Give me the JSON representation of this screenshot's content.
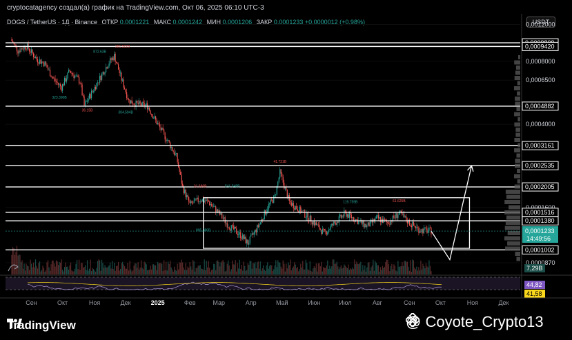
{
  "caption": "cryptocatagency создал(а) график на TradingView.com, Окт 06, 2025 06:10 UTC-3",
  "legend": {
    "symbol": "DOGS / TetherUS · 1Д · Binance",
    "open_label": "ОТКР",
    "open": "0,0001221",
    "high_label": "МАКС",
    "high": "0,0001242",
    "low_label": "МИН",
    "low": "0,0001206",
    "close_label": "ЗАКР",
    "close": "0,0001233",
    "change": "+0,0000012 (+0,98%)"
  },
  "currency_button": "USDT",
  "footer": {
    "brand": "TradingView",
    "author": "@ Coyote_Crypto13"
  },
  "colors": {
    "up": "#26a69a",
    "down": "#ef5350",
    "rsi": "#b39ddb",
    "rsi_ma": "#f9d71c",
    "line": "#ffffff",
    "bg": "#000000"
  },
  "chart_data": {
    "type": "candlestick",
    "price_axis": {
      "scale": "log",
      "ticks": [
        "0,0012000",
        "0,0008000",
        "0,0006500",
        "0,0004000",
        "0,0001600",
        "0,0000870"
      ]
    },
    "x_axis": {
      "ticks": [
        "Сен",
        "Окт",
        "Ноя",
        "Дек",
        "2025",
        "Фев",
        "Мар",
        "Апр",
        "Май",
        "Июн",
        "Июл",
        "Авг",
        "Сен",
        "Окт",
        "Ноя",
        "Дек"
      ]
    },
    "horizontal_levels": [
      {
        "label": "0,0009809",
        "value": 0.0009809
      },
      {
        "label": "0,0009420",
        "value": 0.000942
      },
      {
        "label": "0,0004882",
        "value": 0.0004882
      },
      {
        "label": "0,0003161",
        "value": 0.0003161
      },
      {
        "label": "0,0002535",
        "value": 0.0002535
      },
      {
        "label": "0,0002005",
        "value": 0.0002005
      },
      {
        "label": "0,0001516",
        "value": 0.0001516
      },
      {
        "label": "0,0001380",
        "value": 0.000138
      },
      {
        "label": "0,0001002",
        "value": 0.0001002
      }
    ],
    "current_price": {
      "label": "0,0001233",
      "countdown": "14:49:56",
      "value": 0.0001233
    },
    "price_path": [
      [
        "2024-08-26",
        0.00102
      ],
      [
        "2024-09-02",
        0.0009
      ],
      [
        "2024-09-10",
        0.00095
      ],
      [
        "2024-09-20",
        0.00082
      ],
      [
        "2024-09-28",
        0.00078
      ],
      [
        "2024-10-06",
        0.00066
      ],
      [
        "2024-10-14",
        0.0006
      ],
      [
        "2024-10-22",
        0.00072
      ],
      [
        "2024-11-01",
        0.00064
      ],
      [
        "2024-11-05",
        0.00049
      ],
      [
        "2024-11-15",
        0.0006
      ],
      [
        "2024-11-28",
        0.00078
      ],
      [
        "2024-12-04",
        0.00085
      ],
      [
        "2024-12-10",
        0.00068
      ],
      [
        "2024-12-18",
        0.00052
      ],
      [
        "2024-12-25",
        0.0005
      ],
      [
        "2025-01-05",
        0.00049
      ],
      [
        "2025-01-15",
        0.0004
      ],
      [
        "2025-01-25",
        0.00033
      ],
      [
        "2025-02-02",
        0.00028
      ],
      [
        "2025-02-08",
        0.0002
      ],
      [
        "2025-02-15",
        0.000165
      ],
      [
        "2025-02-25",
        0.000175
      ],
      [
        "2025-03-05",
        0.00017
      ],
      [
        "2025-03-15",
        0.00015
      ],
      [
        "2025-03-25",
        0.00013
      ],
      [
        "2025-04-05",
        0.000118
      ],
      [
        "2025-04-12",
        0.000108
      ],
      [
        "2025-04-22",
        0.00013
      ],
      [
        "2025-05-01",
        0.00016
      ],
      [
        "2025-05-08",
        0.00018
      ],
      [
        "2025-05-13",
        0.000235
      ],
      [
        "2025-05-22",
        0.00017
      ],
      [
        "2025-06-05",
        0.00015
      ],
      [
        "2025-06-15",
        0.000135
      ],
      [
        "2025-06-25",
        0.00012
      ],
      [
        "2025-07-05",
        0.000135
      ],
      [
        "2025-07-15",
        0.00015
      ],
      [
        "2025-07-25",
        0.00014
      ],
      [
        "2025-08-05",
        0.00013
      ],
      [
        "2025-08-15",
        0.000142
      ],
      [
        "2025-08-25",
        0.000135
      ],
      [
        "2025-09-05",
        0.00015
      ],
      [
        "2025-09-15",
        0.000135
      ],
      [
        "2025-09-25",
        0.000125
      ],
      [
        "2025-10-06",
        0.0001233
      ]
    ],
    "projection": [
      [
        "2025-10-06",
        0.0001233
      ],
      [
        "2025-10-24",
        9e-05
      ],
      [
        "2025-11-14",
        0.0002535
      ]
    ],
    "range_box": {
      "from": "2025-02-28",
      "to": "2025-11-12",
      "top": 0.000178,
      "bottom": 0.000102
    },
    "annotations": [
      "872.63B",
      "281.522B",
      "323.390B",
      "36.15B",
      "304.594B",
      "31.686B",
      "541.548B",
      "41.731B",
      "119.759B",
      "61.625B",
      "895.380B"
    ],
    "volume": {
      "value_label": "7,29B"
    },
    "rsi": {
      "value": "44,82",
      "ma_value": "41,58"
    }
  }
}
